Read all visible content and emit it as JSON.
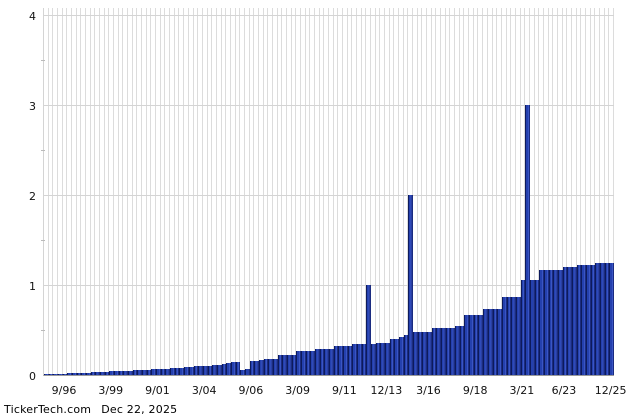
{
  "chart_data": {
    "type": "bar",
    "title": "",
    "xlabel": "",
    "ylabel": "",
    "ylim": [
      0,
      4
    ],
    "yticks": [
      0,
      1,
      2,
      3,
      4
    ],
    "ytick_minor": [
      0.5,
      1.5,
      2.5,
      3.5
    ],
    "grid": true,
    "x": [
      "9/95",
      "12/95",
      "3/96",
      "6/96",
      "9/96",
      "12/96",
      "3/97",
      "6/97",
      "9/97",
      "12/97",
      "3/98",
      "6/98",
      "9/98",
      "12/98",
      "3/99",
      "6/99",
      "9/99",
      "12/99",
      "3/00",
      "6/00",
      "9/00",
      "12/00",
      "3/01",
      "6/01",
      "9/01",
      "12/01",
      "3/02",
      "6/02",
      "9/02",
      "12/02",
      "3/03",
      "6/03",
      "9/03",
      "12/03",
      "3/04",
      "6/04",
      "9/04",
      "12/04",
      "3/05",
      "6/05",
      "9/05",
      "12/05",
      "3/06",
      "6/06",
      "9/06",
      "12/06",
      "3/07",
      "6/07",
      "9/07",
      "12/07",
      "3/08",
      "6/08",
      "9/08",
      "12/08",
      "3/09",
      "6/09",
      "9/09",
      "12/09",
      "3/10",
      "6/10",
      "9/10",
      "12/10",
      "3/11",
      "6/11",
      "9/11",
      "12/11",
      "3/12",
      "6/12",
      "9/12",
      "12/12",
      "3/13",
      "6/13",
      "9/13",
      "12/13",
      "3/14",
      "6/14",
      "9/14",
      "12/14",
      "3/15",
      "6/15",
      "9/15",
      "12/15",
      "3/16",
      "6/16",
      "9/16",
      "12/16",
      "3/17",
      "6/17",
      "9/17",
      "12/17",
      "3/18",
      "6/18",
      "9/18",
      "12/18",
      "3/19",
      "6/19",
      "9/19",
      "12/19",
      "3/20",
      "6/20",
      "9/20",
      "12/20",
      "3/21",
      "6/21",
      "9/21",
      "12/21",
      "3/22",
      "6/22",
      "9/22",
      "12/22",
      "3/23",
      "6/23",
      "9/23",
      "12/23",
      "3/24",
      "6/24",
      "9/24",
      "12/24",
      "3/25",
      "6/25",
      "9/25",
      "12/25"
    ],
    "values": [
      0.01,
      0.012,
      0.014,
      0.015,
      0.016,
      0.018,
      0.02,
      0.022,
      0.024,
      0.026,
      0.03,
      0.033,
      0.035,
      0.038,
      0.04,
      0.04,
      0.045,
      0.05,
      0.05,
      0.052,
      0.055,
      0.055,
      0.06,
      0.065,
      0.065,
      0.065,
      0.07,
      0.08,
      0.08,
      0.08,
      0.085,
      0.09,
      0.1,
      0.1,
      0.1,
      0.105,
      0.11,
      0.115,
      0.12,
      0.13,
      0.14,
      0.14,
      0.06,
      0.065,
      0.16,
      0.16,
      0.17,
      0.18,
      0.18,
      0.18,
      0.22,
      0.22,
      0.22,
      0.22,
      0.27,
      0.27,
      0.27,
      0.27,
      0.29,
      0.29,
      0.29,
      0.29,
      0.32,
      0.32,
      0.32,
      0.32,
      0.35,
      0.35,
      0.35,
      1.0,
      0.35,
      0.36,
      0.36,
      0.36,
      0.4,
      0.4,
      0.42,
      0.44,
      2.0,
      0.48,
      0.48,
      0.48,
      0.48,
      0.52,
      0.52,
      0.52,
      0.52,
      0.52,
      0.54,
      0.54,
      0.67,
      0.67,
      0.67,
      0.67,
      0.73,
      0.73,
      0.73,
      0.73,
      0.87,
      0.87,
      0.87,
      0.87,
      1.06,
      3.0,
      1.06,
      1.06,
      1.17,
      1.17,
      1.17,
      1.17,
      1.17,
      1.2,
      1.2,
      1.2,
      1.22,
      1.22,
      1.22,
      1.22,
      1.25,
      1.25,
      1.25,
      1.25
    ],
    "xticks": [
      {
        "label": "9/96",
        "index": 4
      },
      {
        "label": "3/99",
        "index": 14
      },
      {
        "label": "9/01",
        "index": 24
      },
      {
        "label": "3/04",
        "index": 34
      },
      {
        "label": "9/06",
        "index": 44
      },
      {
        "label": "3/09",
        "index": 54
      },
      {
        "label": "9/11",
        "index": 64
      },
      {
        "label": "12/13",
        "index": 73
      },
      {
        "label": "3/16",
        "index": 82
      },
      {
        "label": "9/18",
        "index": 92
      },
      {
        "label": "3/21",
        "index": 102
      },
      {
        "label": "6/23",
        "index": 111
      },
      {
        "label": "12/25",
        "index": 121
      }
    ],
    "special_spikes": [
      {
        "x": "12/12",
        "value": 1.0
      },
      {
        "x": "3/15",
        "value": 2.0
      },
      {
        "x": "6/21",
        "value": 3.0
      }
    ],
    "legend": null,
    "legend_position": "none"
  },
  "colors": {
    "background": "#ffffff",
    "bar_dark": "#0d1a5c",
    "bar_main": "#2440ae",
    "bar_light": "#3a55c4",
    "bar_shade": "#1a2b80",
    "gridline": "#dcdcdc",
    "axis_line": "#9a9a9a",
    "text": "#000000"
  },
  "footer": {
    "source": "TickerTech.com",
    "date": "Dec 22, 2025"
  }
}
